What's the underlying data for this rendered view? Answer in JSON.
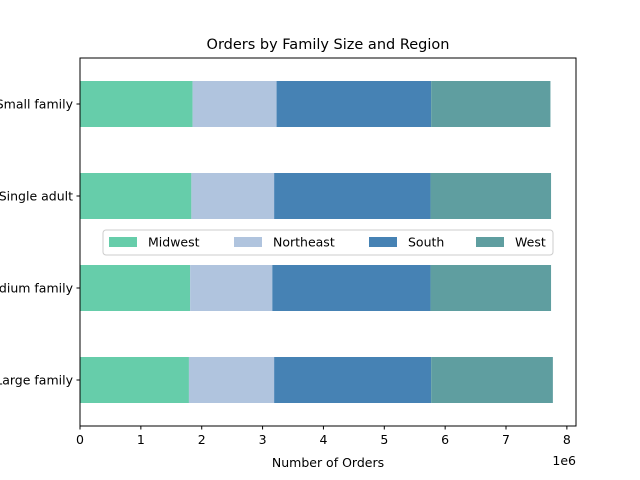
{
  "chart_data": {
    "type": "bar",
    "orientation": "horizontal",
    "stacked": true,
    "title": "Orders by Family Size and Region",
    "xlabel": "Number of Orders",
    "ylabel": "",
    "x_scale_label": "1e6",
    "xlim": [
      0,
      8.15
    ],
    "x_ticks": [
      "0",
      "1",
      "2",
      "3",
      "4",
      "5",
      "6",
      "7",
      "8"
    ],
    "categories": [
      "Small family",
      "Single adult",
      "Medium family",
      "Large family"
    ],
    "series": [
      {
        "name": "Midwest",
        "color": "#66cdaa",
        "values": [
          1.85,
          1.83,
          1.81,
          1.79
        ]
      },
      {
        "name": "Northeast",
        "color": "#b0c4de",
        "values": [
          1.38,
          1.36,
          1.35,
          1.4
        ]
      },
      {
        "name": "South",
        "color": "#4682b4",
        "values": [
          2.54,
          2.57,
          2.6,
          2.58
        ]
      },
      {
        "name": "West",
        "color": "#5f9ea0",
        "values": [
          1.96,
          1.98,
          1.98,
          2.0
        ]
      }
    ],
    "legend": {
      "placement": "center",
      "columns": 4
    },
    "grid": false
  }
}
